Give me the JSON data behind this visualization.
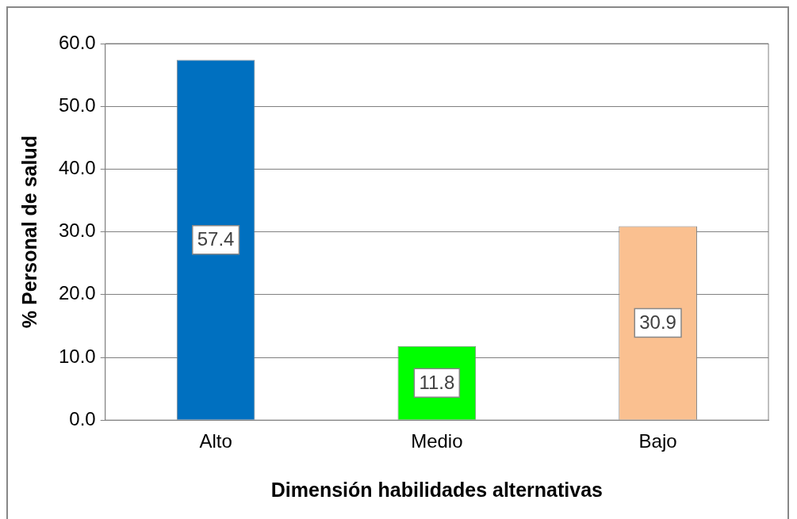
{
  "chart_data": {
    "type": "bar",
    "xlabel": "Dimensión habilidades alternativas",
    "ylabel": "% Personal de salud",
    "categories": [
      "Alto",
      "Medio",
      "Bajo"
    ],
    "values": [
      57.4,
      11.8,
      30.9
    ],
    "colors": [
      "#0070c0",
      "#00ff00",
      "#fac090"
    ],
    "ylim": [
      0,
      60
    ],
    "yticks": [
      {
        "value": 0,
        "label": "0.0"
      },
      {
        "value": 10,
        "label": "10.0"
      },
      {
        "value": 20,
        "label": "20.0"
      },
      {
        "value": 30,
        "label": "30.0"
      },
      {
        "value": 40,
        "label": "40.0"
      },
      {
        "value": 50,
        "label": "50.0"
      },
      {
        "value": 60,
        "label": "60.0"
      }
    ],
    "grid": "y",
    "legend": false,
    "data_labels": true
  }
}
